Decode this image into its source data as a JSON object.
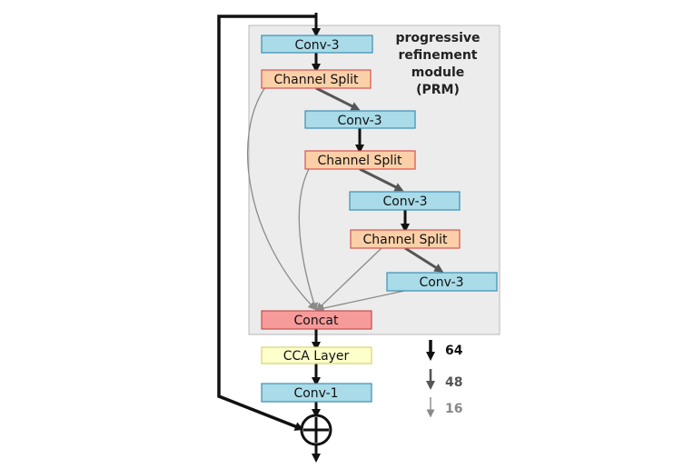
{
  "prm": {
    "title_line1": "progressive",
    "title_line2": "refinement",
    "title_line3": "module",
    "title_line4": "(PRM)"
  },
  "nodes": {
    "conv3_a": "Conv-3",
    "split_a": "Channel Split",
    "conv3_b": "Conv-3",
    "split_b": "Channel Split",
    "conv3_c": "Conv-3",
    "split_c": "Channel Split",
    "conv3_d": "Conv-3",
    "concat": "Concat",
    "cca": "CCA Layer",
    "conv1": "Conv-1",
    "sum": "⊕"
  },
  "legend": [
    {
      "label": "64",
      "color": "#111111"
    },
    {
      "label": "48",
      "color": "#555555"
    },
    {
      "label": "16",
      "color": "#888888"
    }
  ],
  "colors": {
    "conv": "#a9dbe8",
    "split": "#fbd0a8",
    "concat": "#f79a9a",
    "cca": "#ffffcc",
    "module_bg": "#ececec"
  }
}
